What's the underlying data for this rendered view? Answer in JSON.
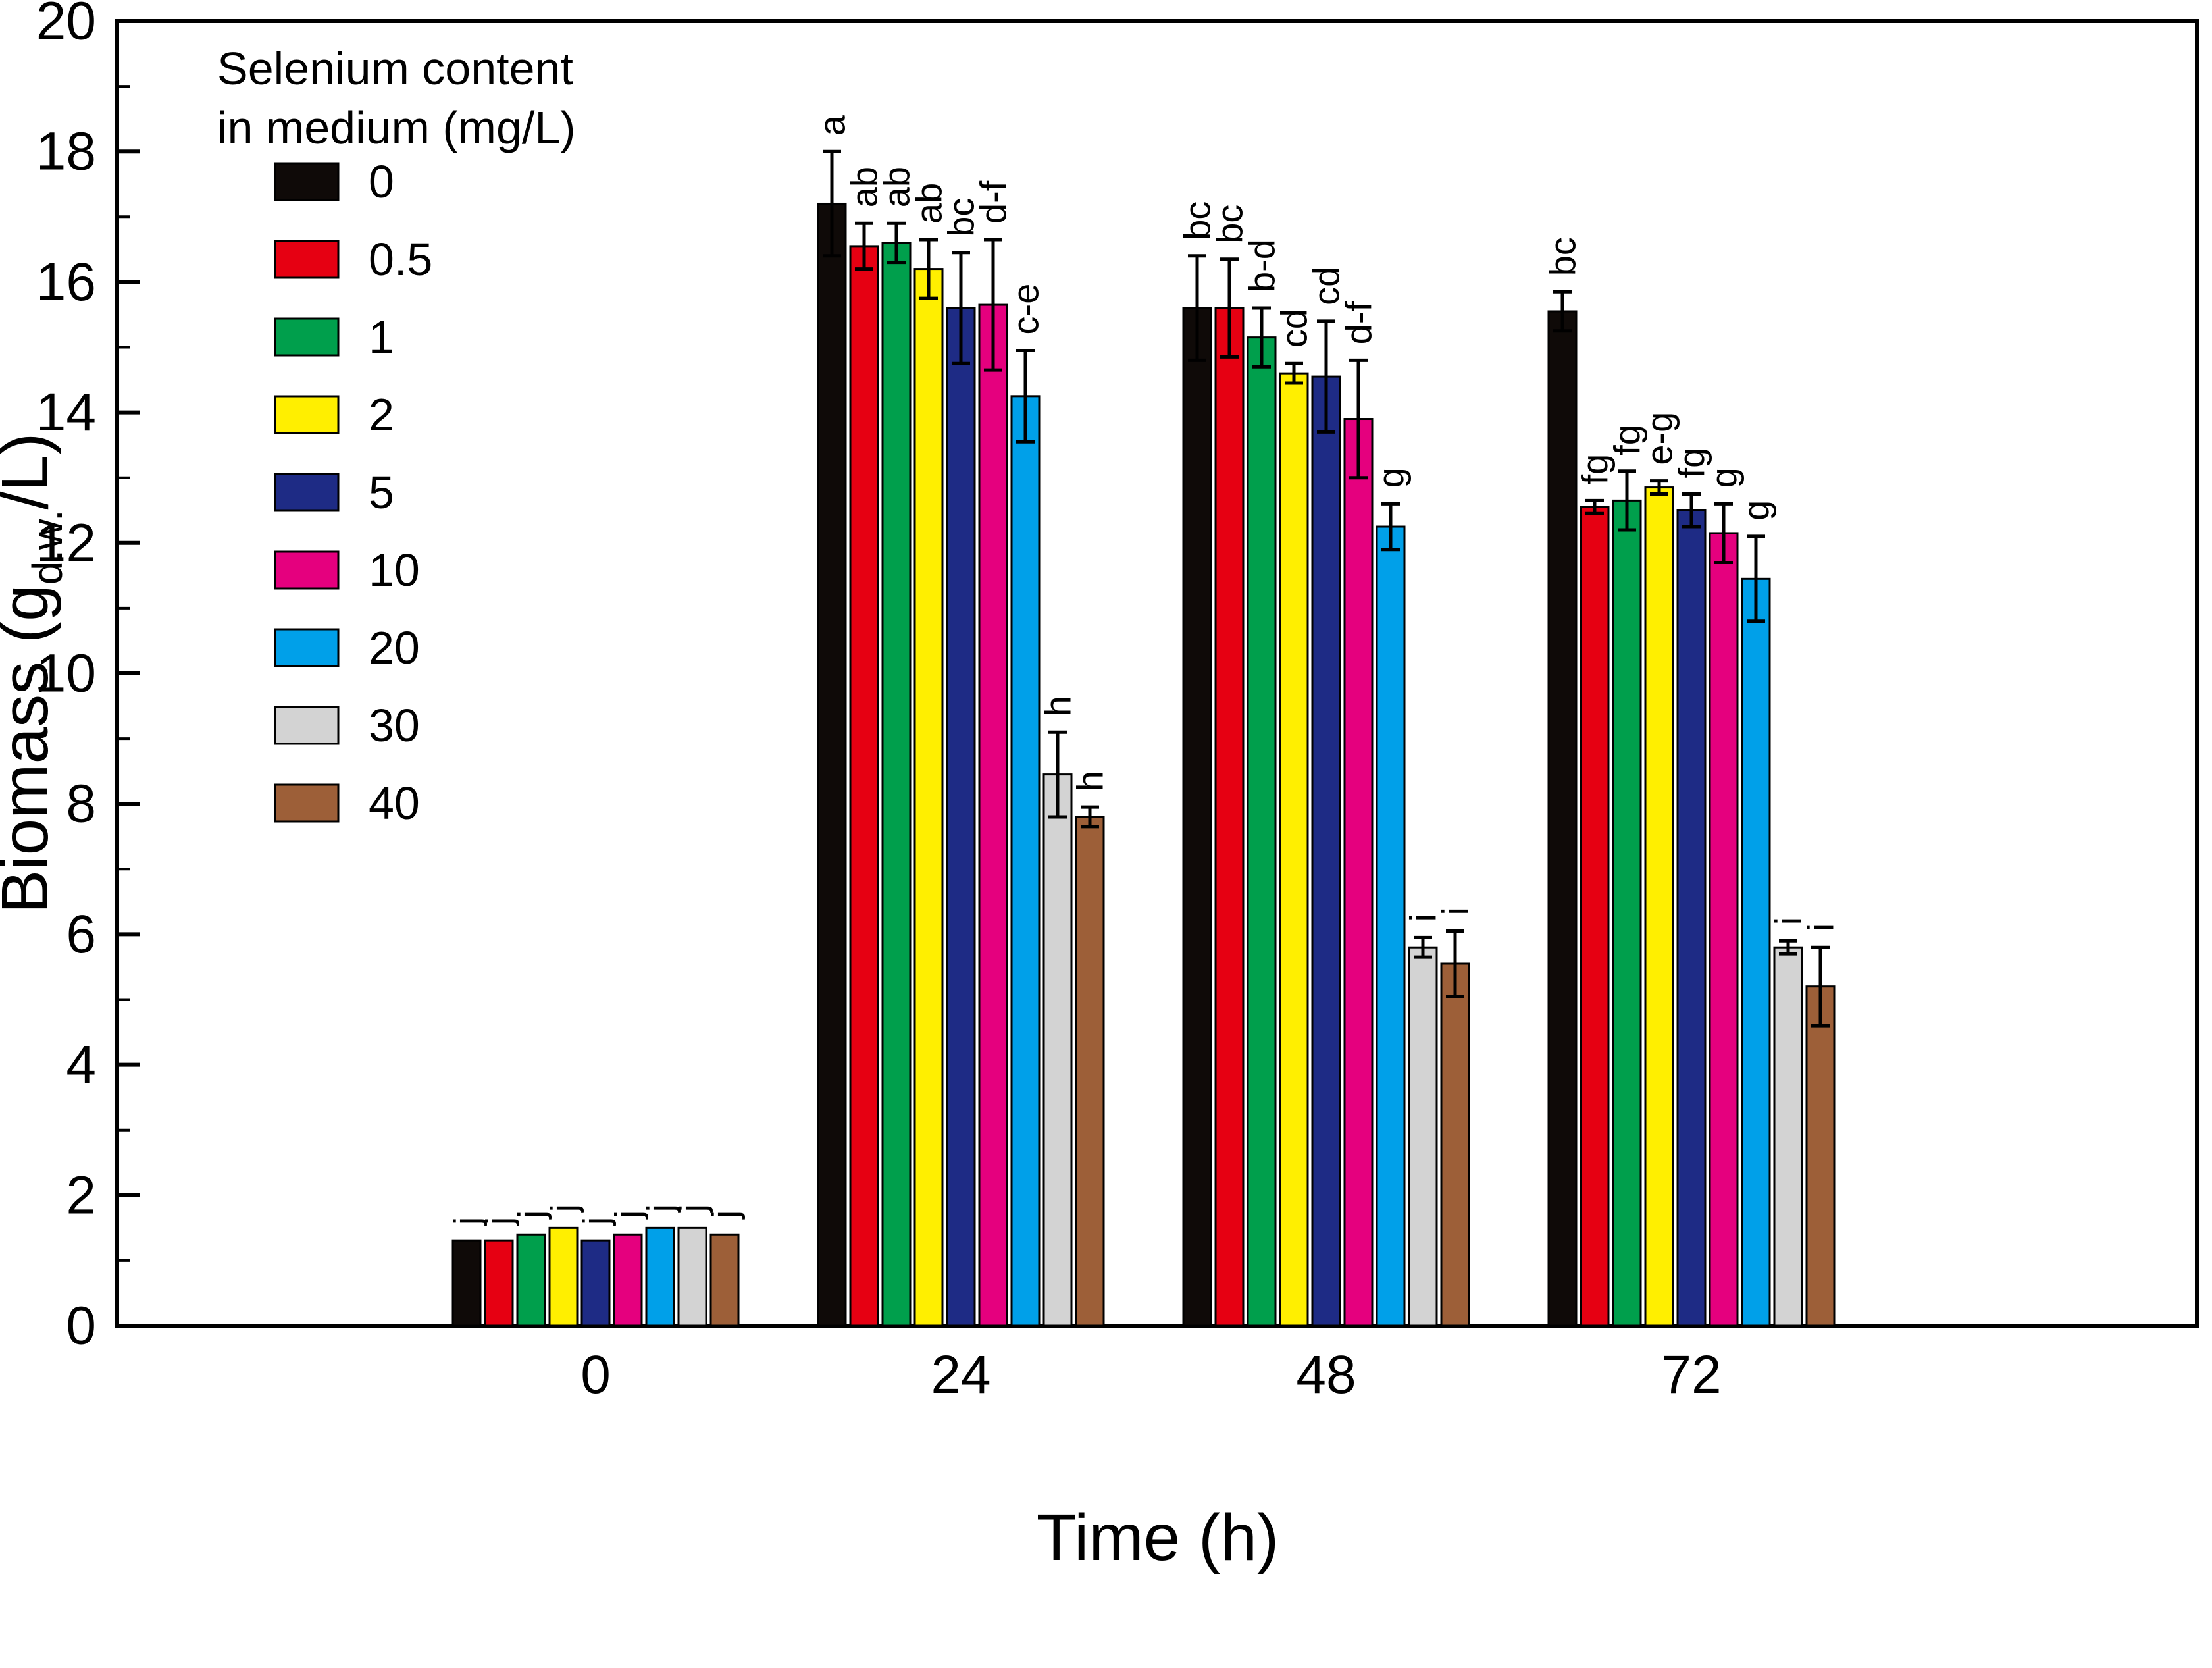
{
  "figure": {
    "background": "#ffffff"
  },
  "chart_data": {
    "type": "bar",
    "title": "",
    "xlabel": "Time (h)",
    "ylabel": "Biomass (g d.w. /L)",
    "ylabel_parts": {
      "prefix": "Biomass (g",
      "sub": "d.w.",
      "suffix": "/L)"
    },
    "ylim": [
      0,
      20
    ],
    "ytick_interval": 2,
    "ytick_minor": 1,
    "ytick_labels": [
      "0",
      "2",
      "4",
      "6",
      "8",
      "10",
      "12",
      "14",
      "16",
      "18",
      "20"
    ],
    "categories": [
      "0",
      "24",
      "48",
      "72"
    ],
    "legend_title": [
      "Selenium content",
      "in medium (mg/L)"
    ],
    "legend_position": "top-left",
    "grid": false,
    "error_bars": true,
    "frame_color": "#000000",
    "series": [
      {
        "name": "0",
        "color": "#0f0a08",
        "values": [
          1.3,
          17.2,
          15.6,
          15.55
        ],
        "errors": [
          0.05,
          0.8,
          0.8,
          0.3
        ],
        "labels": [
          "j",
          "a",
          "bc",
          "bc"
        ]
      },
      {
        "name": "0.5",
        "color": "#e60012",
        "values": [
          1.3,
          16.55,
          15.6,
          12.55
        ],
        "errors": [
          0.05,
          0.35,
          0.75,
          0.1
        ],
        "labels": [
          "j",
          "ab",
          "bc",
          "fg"
        ]
      },
      {
        "name": "1",
        "color": "#009f4c",
        "values": [
          1.4,
          16.6,
          15.15,
          12.65
        ],
        "errors": [
          0.05,
          0.3,
          0.45,
          0.45
        ],
        "labels": [
          "j",
          "ab",
          "b-d",
          "fg"
        ]
      },
      {
        "name": "2",
        "color": "#ffef00",
        "values": [
          1.5,
          16.2,
          14.6,
          12.85
        ],
        "errors": [
          0.05,
          0.45,
          0.15,
          0.1
        ],
        "labels": [
          "j",
          "ab",
          "cd",
          "e-g"
        ]
      },
      {
        "name": "5",
        "color": "#1e2b85",
        "values": [
          1.3,
          15.6,
          14.55,
          12.5
        ],
        "errors": [
          0.05,
          0.85,
          0.85,
          0.25
        ],
        "labels": [
          "j",
          "bc",
          "cd",
          "fg"
        ]
      },
      {
        "name": "10",
        "color": "#e5007e",
        "values": [
          1.4,
          15.65,
          13.9,
          12.15
        ],
        "errors": [
          0.05,
          1.0,
          0.9,
          0.45
        ],
        "labels": [
          "j",
          "d-f",
          "d-f",
          "g"
        ]
      },
      {
        "name": "20",
        "color": "#00a0e9",
        "values": [
          1.5,
          14.25,
          12.25,
          11.45
        ],
        "errors": [
          0.05,
          0.7,
          0.35,
          0.65
        ],
        "labels": [
          "j",
          "c-e",
          "g",
          "g"
        ]
      },
      {
        "name": "30",
        "color": "#d3d3d3",
        "values": [
          1.5,
          8.45,
          5.8,
          5.8
        ],
        "errors": [
          0.05,
          0.65,
          0.15,
          0.1
        ],
        "labels": [
          "j",
          "h",
          "i",
          "i"
        ]
      },
      {
        "name": "40",
        "color": "#9d5f38",
        "values": [
          1.4,
          7.8,
          5.55,
          5.2
        ],
        "errors": [
          0.05,
          0.15,
          0.5,
          0.6
        ],
        "labels": [
          "j",
          "h",
          "i",
          "i"
        ]
      }
    ]
  }
}
